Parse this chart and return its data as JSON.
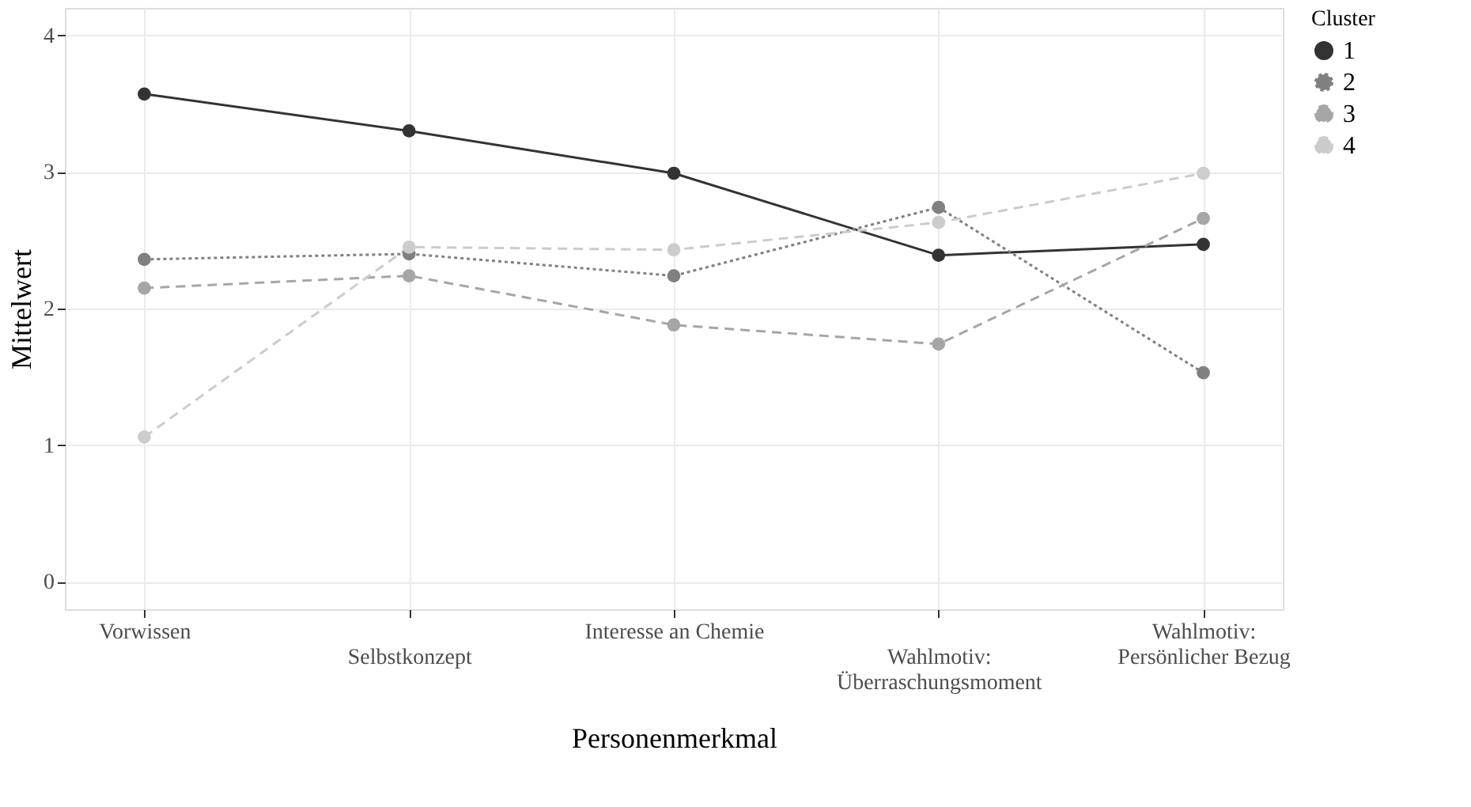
{
  "chart_data": {
    "type": "line",
    "xlabel": "Personenmerkmal",
    "ylabel": "Mittelwert",
    "legend_title": "Cluster",
    "legend": "right",
    "grid": true,
    "marker": "circle",
    "categories": [
      "Vorwissen",
      "Selbstkonzept",
      "Interesse an Chemie",
      "Wahlmotiv:\nÜberraschungsmoment",
      "Wahlmotiv:\nPersönlicher Bezug"
    ],
    "ylim": [
      -0.2,
      4.2
    ],
    "yticks": [
      0,
      1,
      2,
      3,
      4
    ],
    "series": [
      {
        "name": "1",
        "color": "#333333",
        "line_style": "solid",
        "values": [
          3.57,
          3.3,
          2.99,
          2.39,
          2.47
        ]
      },
      {
        "name": "2",
        "color": "#808080",
        "line_style": "dotted",
        "values": [
          2.36,
          2.4,
          2.24,
          2.74,
          1.53
        ]
      },
      {
        "name": "3",
        "color": "#a6a6a6",
        "line_style": "dashed",
        "values": [
          2.15,
          2.24,
          1.88,
          1.74,
          2.66
        ]
      },
      {
        "name": "4",
        "color": "#cccccc",
        "line_style": "dashed",
        "values": [
          1.06,
          2.45,
          2.43,
          2.63,
          2.99
        ]
      }
    ]
  }
}
